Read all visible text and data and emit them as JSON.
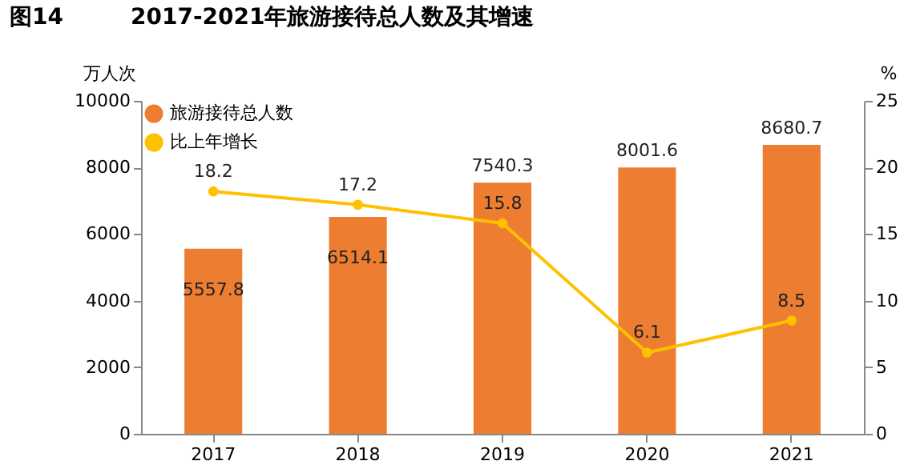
{
  "chart_data": {
    "type": "bar",
    "title": "图14　　　2017-2021年旅游接待总人数及其增速",
    "ylabel": "万人次",
    "y2label": "%",
    "categories": [
      "2017",
      "2018",
      "2019",
      "2020",
      "2021"
    ],
    "series": [
      {
        "name": "旅游接待总人数",
        "color": "#ed7d31",
        "values": [
          5557.8,
          6514.1,
          7540.3,
          8001.6,
          8680.7
        ]
      },
      {
        "name": "比上年增长",
        "type": "line",
        "axis": "y2",
        "color": "#ffc000",
        "values": [
          18.2,
          17.2,
          15.8,
          6.1,
          8.5
        ]
      }
    ],
    "ylim": [
      0,
      10000
    ],
    "yticks": [
      0,
      2000,
      4000,
      6000,
      8000,
      10000
    ],
    "y2lim": [
      0,
      25
    ],
    "y2ticks": [
      0,
      5,
      10,
      15,
      20,
      25
    ],
    "data_labels": true,
    "legend": "top left",
    "marker": "circle",
    "grid": false
  }
}
